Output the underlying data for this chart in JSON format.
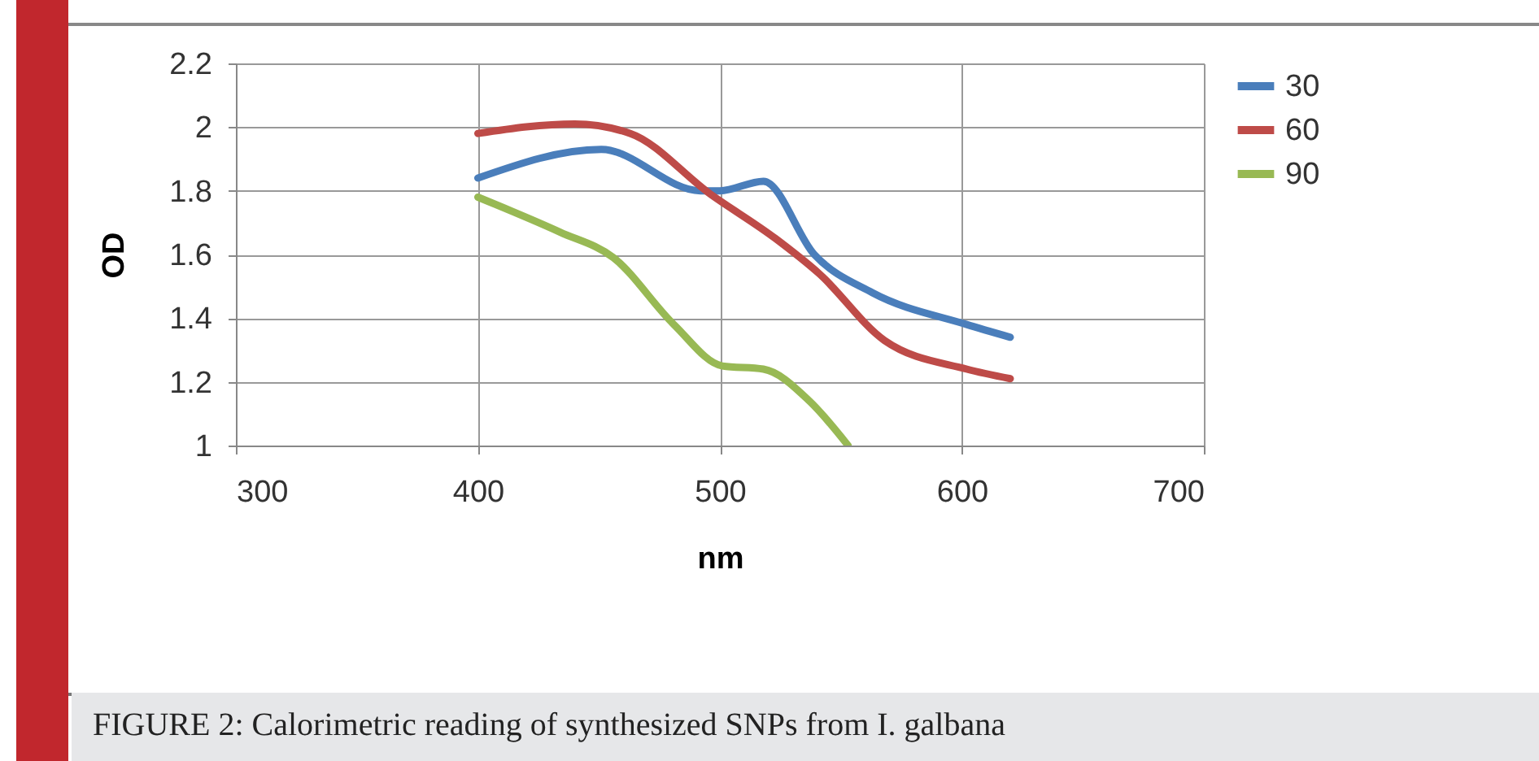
{
  "chart_data": {
    "type": "line",
    "xlabel": "nm",
    "ylabel": "OD",
    "xlim": [
      300,
      700
    ],
    "xticks": [
      300,
      400,
      500,
      600,
      700
    ],
    "ylim": [
      1,
      2.2
    ],
    "yticks": [
      1,
      1.2,
      1.4,
      1.6,
      1.8,
      2,
      2.2
    ],
    "grid": true,
    "legend": "top right",
    "annotations": [
      "FIGURE 2: Calorimetric reading of synthesized SNPs from I. galbana"
    ],
    "series": [
      {
        "name": "30",
        "color": "#4a7ebb",
        "x": [
          400,
          451,
          492,
          500,
          518,
          539,
          563,
          602,
          620
        ],
        "values": [
          1.84,
          1.93,
          1.8,
          1.8,
          1.83,
          1.6,
          1.48,
          1.38,
          1.34
        ]
      },
      {
        "name": "60",
        "color": "#be4b48",
        "x": [
          400,
          440,
          463,
          496,
          523,
          541,
          568,
          602,
          620
        ],
        "values": [
          1.98,
          2.01,
          1.98,
          1.79,
          1.65,
          1.54,
          1.33,
          1.24,
          1.21
        ]
      },
      {
        "name": "90",
        "color": "#98b954",
        "x": [
          400,
          434,
          456,
          481,
          501,
          518,
          537,
          553
        ],
        "values": [
          1.78,
          1.67,
          1.59,
          1.38,
          1.25,
          1.24,
          1.14,
          1.0
        ]
      }
    ]
  }
}
